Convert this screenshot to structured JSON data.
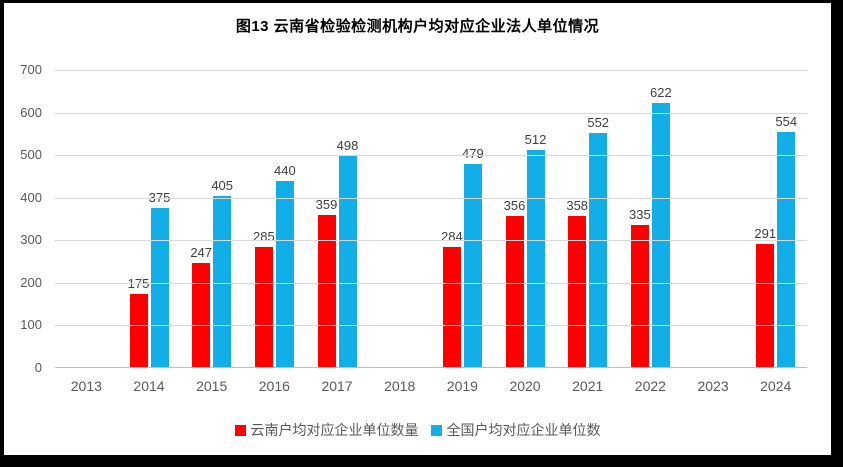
{
  "chart_data": {
    "type": "bar",
    "title": "图13 云南省检验检测机构户均对应企业法人单位情况",
    "categories": [
      "2013",
      "2014",
      "2015",
      "2016",
      "2017",
      "2018",
      "2019",
      "2020",
      "2021",
      "2022",
      "2023",
      "2024"
    ],
    "series": [
      {
        "name": "云南户均对应企业单位数量",
        "color": "#fe0000",
        "values": [
          null,
          175,
          247,
          285,
          359,
          null,
          284,
          356,
          358,
          335,
          null,
          291
        ]
      },
      {
        "name": "全国户均对应企业单位数",
        "color": "#12aee8",
        "values": [
          null,
          375,
          405,
          440,
          498,
          null,
          479,
          512,
          552,
          622,
          null,
          554
        ]
      }
    ],
    "xlabel": "",
    "ylabel": "",
    "ylim": [
      0,
      700
    ],
    "ytick_step": 100,
    "yticks": [
      0,
      100,
      200,
      300,
      400,
      500,
      600,
      700
    ],
    "grid": "horizontal",
    "data_labels": true,
    "legend_position": "bottom"
  }
}
